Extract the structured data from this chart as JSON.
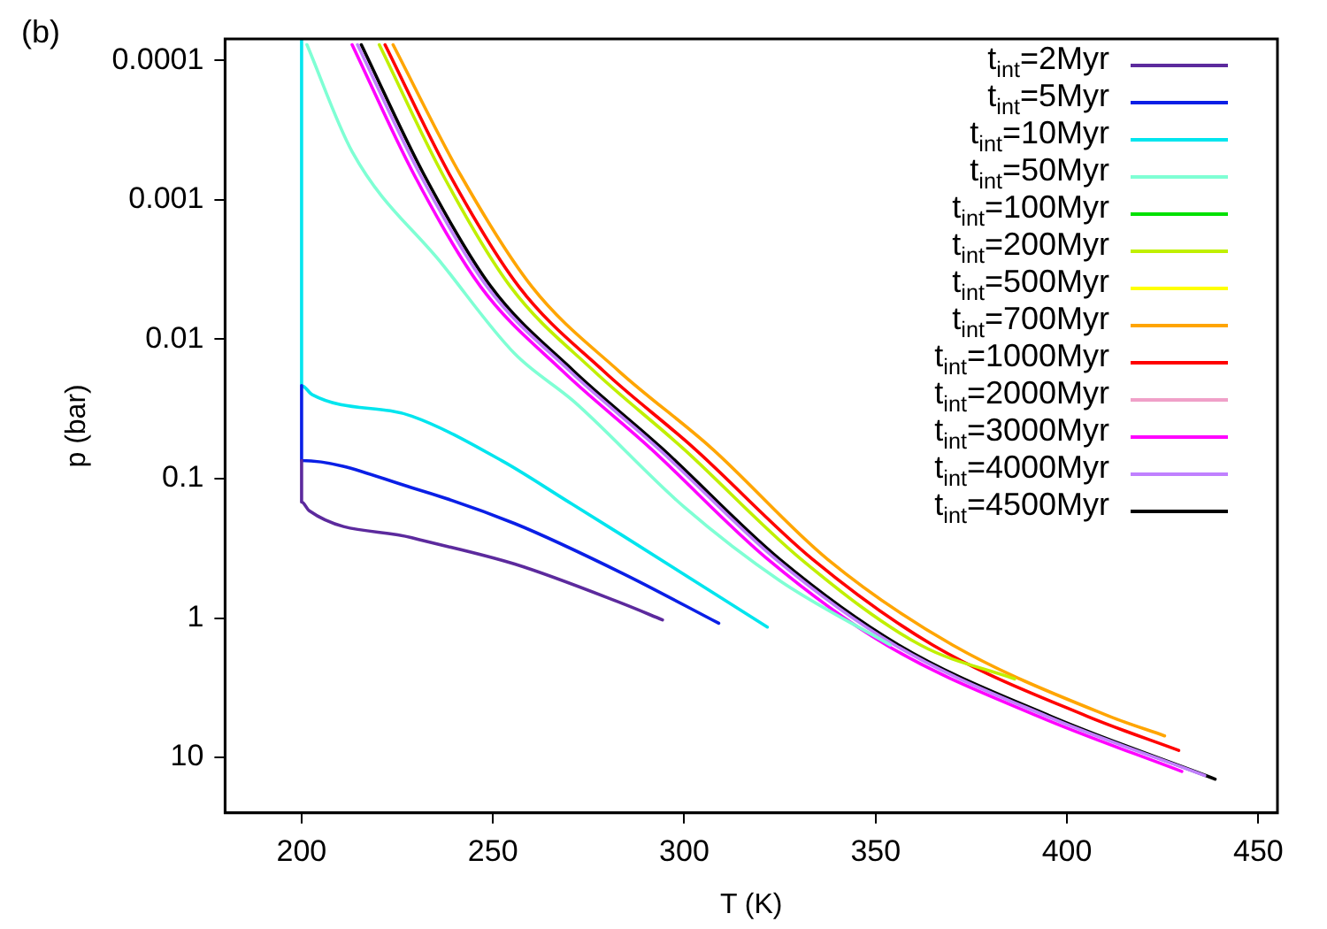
{
  "chart_data": {
    "type": "line",
    "xlabel": "T (K)",
    "ylabel": "p (bar)",
    "annotations": [
      "(b)"
    ],
    "xlim": [
      180,
      455
    ],
    "xticks": [
      200,
      250,
      300,
      350,
      400,
      450
    ],
    "ylim": [
      25,
      7e-05
    ],
    "yticks": [
      0.0001,
      0.001,
      0.01,
      0.1,
      1,
      10
    ],
    "log": "y",
    "legend": "top right",
    "marker": "none",
    "line_style": "solid",
    "series": [
      {
        "name": "t$_{int}$=2Myr",
        "color": "#5c2a9d",
        "x": [
          200,
          200,
          202,
          228.8,
          255.7,
          284,
          294.3
        ],
        "values": [
          0.074,
          0.147,
          0.17,
          0.265,
          0.41,
          0.79,
          1.03
        ]
      },
      {
        "name": "t$_{int}$=5Myr",
        "color": "#0a1fe6",
        "x": [
          200,
          200,
          228.8,
          255.7,
          284,
          309
        ],
        "values": [
          0.0215,
          0.074,
          0.116,
          0.21,
          0.48,
          1.09
        ]
      },
      {
        "name": "t$_{int}$=10Myr",
        "color": "#00e5ee",
        "x": [
          200,
          200,
          202.8,
          228.8,
          252.4,
          269.8,
          284,
          321.7
        ],
        "values": [
          7e-05,
          0.0215,
          0.025,
          0.0356,
          0.0745,
          0.147,
          0.257,
          1.16
        ]
      },
      {
        "name": "t$_{int}$=50Myr",
        "color": "#7fffd4",
        "x": [
          201.4,
          213.2,
          236.8,
          255.7,
          271.2,
          300,
          325,
          353.8
        ],
        "values": [
          7.7e-05,
          0.00045,
          0.0029,
          0.0127,
          0.028,
          0.16,
          0.54,
          1.56
        ]
      },
      {
        "name": "t$_{int}$=100Myr",
        "color": "#00e000"
      },
      {
        "name": "t$_{int}$=200Myr",
        "color": "#c0f000",
        "x": [
          220.3,
          236.9,
          254.6,
          276.5,
          299.5,
          330.6,
          361.7,
          386.3
        ],
        "values": [
          7.7e-05,
          0.00066,
          0.0042,
          0.017,
          0.06,
          0.38,
          1.56,
          2.73
        ]
      },
      {
        "name": "t$_{int}$=500Myr",
        "color": "#ffff00"
      },
      {
        "name": "t$_{int}$=700Myr",
        "color": "#ffa500",
        "x": [
          223.9,
          241.5,
          260.2,
          283,
          307,
          337.5,
          370.1,
          411.1,
          425.5
        ],
        "values": [
          7.7e-05,
          0.00066,
          0.0042,
          0.017,
          0.06,
          0.38,
          1.56,
          5.07,
          7.0
        ]
      },
      {
        "name": "t$_{int}$=1000Myr",
        "color": "#ff0000",
        "x": [
          221.8,
          238.7,
          256.8,
          279,
          302.4,
          333.6,
          364.9,
          405.3,
          429.2
        ],
        "values": [
          7.7e-05,
          0.00066,
          0.0042,
          0.017,
          0.06,
          0.38,
          1.56,
          5.07,
          8.9
        ]
      },
      {
        "name": "t$_{int}$=2000Myr",
        "color": "#f0a0c8"
      },
      {
        "name": "t$_{int}$=3000Myr",
        "color": "#ff00ff",
        "x": [
          213.2,
          229.4,
          246.8,
          268.3,
          291,
          321.9,
          352.8,
          392.5,
          430
        ],
        "values": [
          7.7e-05,
          0.00066,
          0.0042,
          0.017,
          0.06,
          0.38,
          1.56,
          5.07,
          12.6
        ]
      },
      {
        "name": "t$_{int}$=4000Myr",
        "color": "#c080ff",
        "x": [
          214.6,
          231,
          248.5,
          270.2,
          293,
          324,
          355,
          394.8,
          436
        ],
        "values": [
          7.7e-05,
          0.00066,
          0.0042,
          0.017,
          0.06,
          0.38,
          1.56,
          5.07,
          13.5
        ]
      },
      {
        "name": "t$_{int}$=4500Myr",
        "color": "#000000",
        "x": [
          215.6,
          232,
          249.5,
          271.2,
          294,
          325,
          356,
          395.8,
          438.7
        ],
        "values": [
          7.7e-05,
          0.00066,
          0.0042,
          0.017,
          0.06,
          0.38,
          1.56,
          5.07,
          14.3
        ]
      }
    ]
  }
}
